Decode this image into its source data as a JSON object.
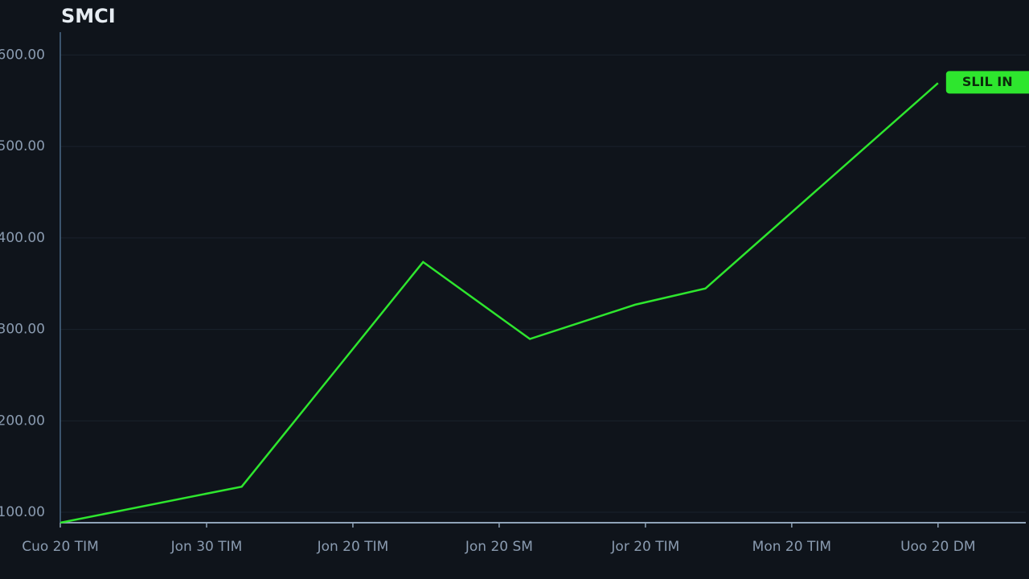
{
  "chart_data": {
    "type": "line",
    "title": "SMCI",
    "x": [
      0,
      1.24,
      2.48,
      3.21,
      3.93,
      4.41,
      6
    ],
    "series": [
      {
        "name": "SMCI",
        "color": "#2ee62e",
        "values": [
          88.6,
          128,
          373.7,
          289.5,
          327,
          344.7,
          569.3
        ]
      }
    ],
    "xlim": [
      0,
      6.6
    ],
    "xticks": [
      {
        "value": 0,
        "label": "Cuo 20 TIM"
      },
      {
        "value": 1,
        "label": "Jon 30 TIM"
      },
      {
        "value": 2,
        "label": "Jon 20 TIM"
      },
      {
        "value": 3,
        "label": "Jon 20 SM"
      },
      {
        "value": 4,
        "label": "Jor 20 TIM"
      },
      {
        "value": 5,
        "label": "Mon 20 TIM"
      },
      {
        "value": 6,
        "label": "Uoo 20 DM"
      }
    ],
    "ylim": [
      88.6,
      625
    ],
    "yticks": [
      {
        "value": 100,
        "label": "100.00"
      },
      {
        "value": 200,
        "label": "200.00"
      },
      {
        "value": 300,
        "label": "300.00"
      },
      {
        "value": 400,
        "label": "400.00"
      },
      {
        "value": 500,
        "label": "500.00"
      },
      {
        "value": 600,
        "label": "600.00"
      }
    ],
    "grid": true,
    "badge": "SLIL IN"
  }
}
